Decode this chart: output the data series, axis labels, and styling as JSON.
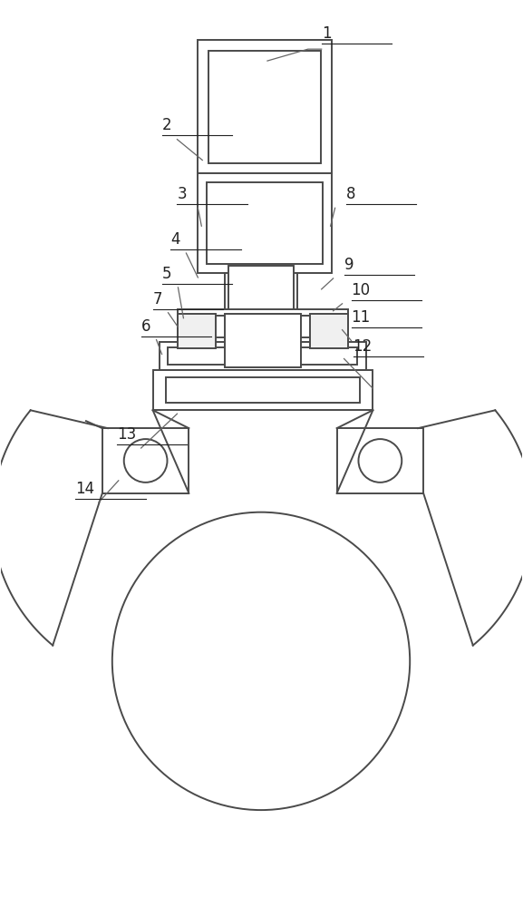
{
  "bg_color": "#ffffff",
  "line_color": "#4a4a4a",
  "line_width": 1.4,
  "label_color": "#222222",
  "label_fontsize": 12,
  "leader_color": "#666666",
  "leader_lw": 0.9
}
